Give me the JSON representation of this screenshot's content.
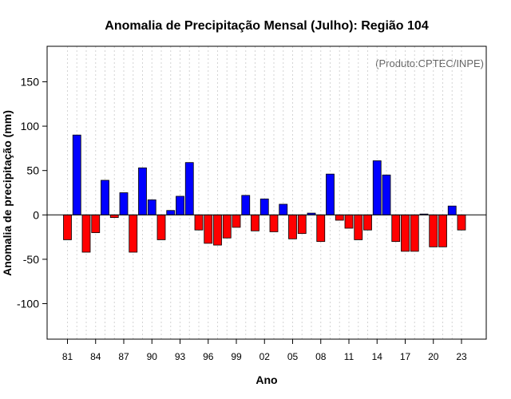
{
  "chart_data": {
    "type": "bar",
    "title": "Anomalia de Precipitação Mensal (Julho): Região 104",
    "xlabel": "Ano",
    "ylabel": "Anomalia de precipitação (mm)",
    "credit": "(Produto:CPTEC/INPE)",
    "ylim": [
      -140,
      190
    ],
    "yticks": [
      -100,
      -50,
      0,
      50,
      100,
      150
    ],
    "x": [
      1981,
      1982,
      1983,
      1984,
      1985,
      1986,
      1987,
      1988,
      1989,
      1990,
      1991,
      1992,
      1993,
      1994,
      1995,
      1996,
      1997,
      1998,
      1999,
      2000,
      2001,
      2002,
      2003,
      2004,
      2005,
      2006,
      2007,
      2008,
      2009,
      2010,
      2011,
      2012,
      2013,
      2014,
      2015,
      2016,
      2017,
      2018,
      2019,
      2020,
      2021,
      2022,
      2023
    ],
    "xtick_labels": [
      "81",
      "84",
      "87",
      "90",
      "93",
      "96",
      "99",
      "02",
      "05",
      "08",
      "11",
      "14",
      "17",
      "20",
      "23"
    ],
    "xtick_years": [
      1981,
      1984,
      1987,
      1990,
      1993,
      1996,
      1999,
      2002,
      2005,
      2008,
      2011,
      2014,
      2017,
      2020,
      2023
    ],
    "values": [
      -28,
      90,
      -42,
      -20,
      39,
      -3,
      25,
      -42,
      53,
      17,
      -28,
      5,
      21,
      59,
      -17,
      -32,
      -34,
      -26,
      -14,
      22,
      -18,
      18,
      -19,
      12,
      -27,
      -21,
      2,
      -30,
      46,
      -6,
      -15,
      -28,
      -17,
      61,
      45,
      -30,
      -41,
      -41,
      1,
      -36,
      -36,
      10,
      -17
    ],
    "colors": {
      "positive": "#0000ff",
      "negative": "#ff0000",
      "border": "#000000",
      "grid": "#d3d3d3"
    }
  }
}
